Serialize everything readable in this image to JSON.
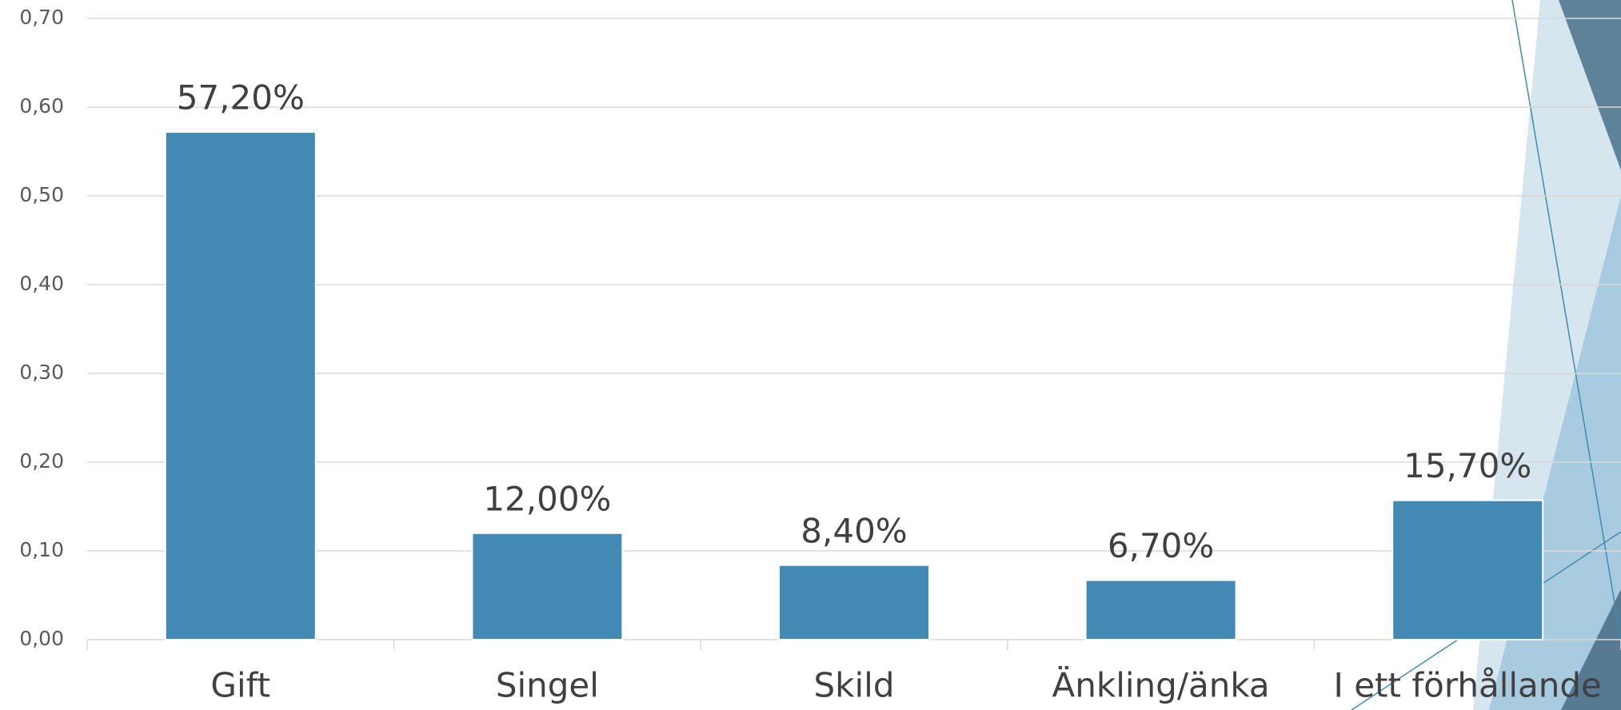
{
  "chart_data": {
    "type": "bar",
    "categories": [
      "Gift",
      "Singel",
      "Skild",
      "Änkling/änka",
      "I ett förhållande"
    ],
    "values": [
      0.572,
      0.12,
      0.084,
      0.067,
      0.157
    ],
    "value_labels": [
      "57,20%",
      "12,00%",
      "8,40%",
      "6,70%",
      "15,70%"
    ],
    "color": "#428ab3",
    "ylim": [
      0,
      0.7
    ],
    "yticks": [
      {
        "value": 0,
        "label": "0,00"
      },
      {
        "value": 0.1,
        "label": "0,10"
      },
      {
        "value": 0.2,
        "label": "0,20"
      },
      {
        "value": 0.3,
        "label": "0,30"
      },
      {
        "value": 0.4,
        "label": "0,40"
      },
      {
        "value": 0.5,
        "label": "0,50"
      },
      {
        "value": 0.6,
        "label": "0,60"
      },
      {
        "value": 0.7,
        "label": "0,70"
      }
    ],
    "grid": true
  }
}
